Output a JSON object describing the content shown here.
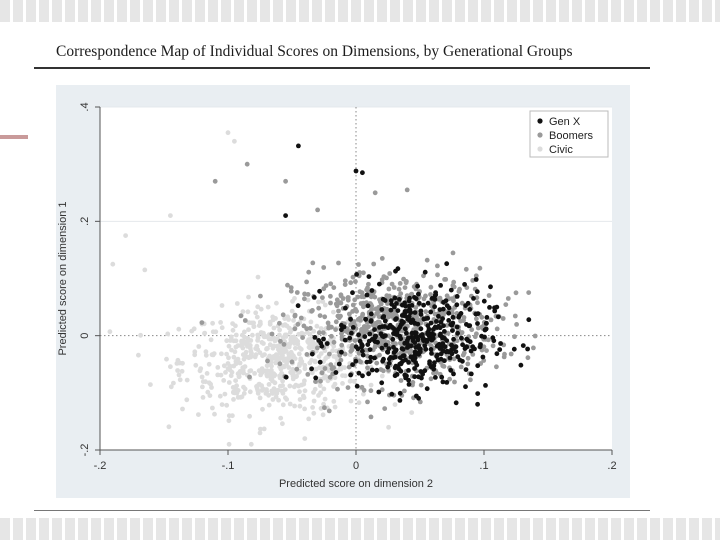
{
  "title": "Correspondence Map of Individual Scores on Dimensions, by Generational Groups",
  "chart_data": {
    "type": "scatter",
    "xlabel": "Predicted score on dimension 2",
    "ylabel": "Predicted score on dimension 1",
    "xlim": [
      -0.2,
      0.2
    ],
    "ylim": [
      -0.2,
      0.4
    ],
    "xticks": [
      -0.2,
      -0.1,
      0,
      0.1,
      0.2
    ],
    "xtick_labels": [
      "-.2",
      "-.1",
      "0",
      ".1",
      ".2"
    ],
    "yticks": [
      -0.2,
      0,
      0.2,
      0.4
    ],
    "ytick_labels": [
      "-.2",
      "0",
      ".2",
      ".4"
    ],
    "grid": true,
    "reference_lines": {
      "x": 0,
      "y": 0,
      "style": "dotted"
    },
    "legend_position": "top-right",
    "series": [
      {
        "name": "Gen X",
        "color": "#111111",
        "center": [
          0.045,
          -0.005
        ],
        "spread": [
          0.03,
          0.045
        ],
        "n": 420,
        "points": [
          [
            -0.045,
            0.332
          ],
          [
            0.0,
            0.288
          ],
          [
            0.005,
            0.285
          ],
          [
            -0.055,
            0.21
          ],
          [
            0.11,
            0.05
          ],
          [
            0.135,
            0.028
          ],
          [
            0.095,
            -0.12
          ]
        ]
      },
      {
        "name": "Boomers",
        "color": "#9a9a9a",
        "center": [
          0.03,
          0.015
        ],
        "spread": [
          0.04,
          0.05
        ],
        "n": 650,
        "points": [
          [
            -0.085,
            0.3
          ],
          [
            -0.11,
            0.27
          ],
          [
            -0.055,
            0.27
          ],
          [
            0.015,
            0.25
          ],
          [
            0.04,
            0.255
          ],
          [
            -0.03,
            0.22
          ],
          [
            0.125,
            0.075
          ],
          [
            0.115,
            0.03
          ]
        ]
      },
      {
        "name": "Civic",
        "color": "#dcdcdc",
        "center": [
          -0.06,
          -0.045
        ],
        "spread": [
          0.038,
          0.045
        ],
        "n": 600,
        "points": [
          [
            -0.1,
            0.355
          ],
          [
            -0.095,
            0.34
          ],
          [
            -0.145,
            0.21
          ],
          [
            -0.18,
            0.175
          ],
          [
            -0.19,
            0.125
          ],
          [
            -0.165,
            0.115
          ],
          [
            -0.075,
            -0.17
          ],
          [
            -0.04,
            -0.18
          ]
        ]
      }
    ]
  }
}
